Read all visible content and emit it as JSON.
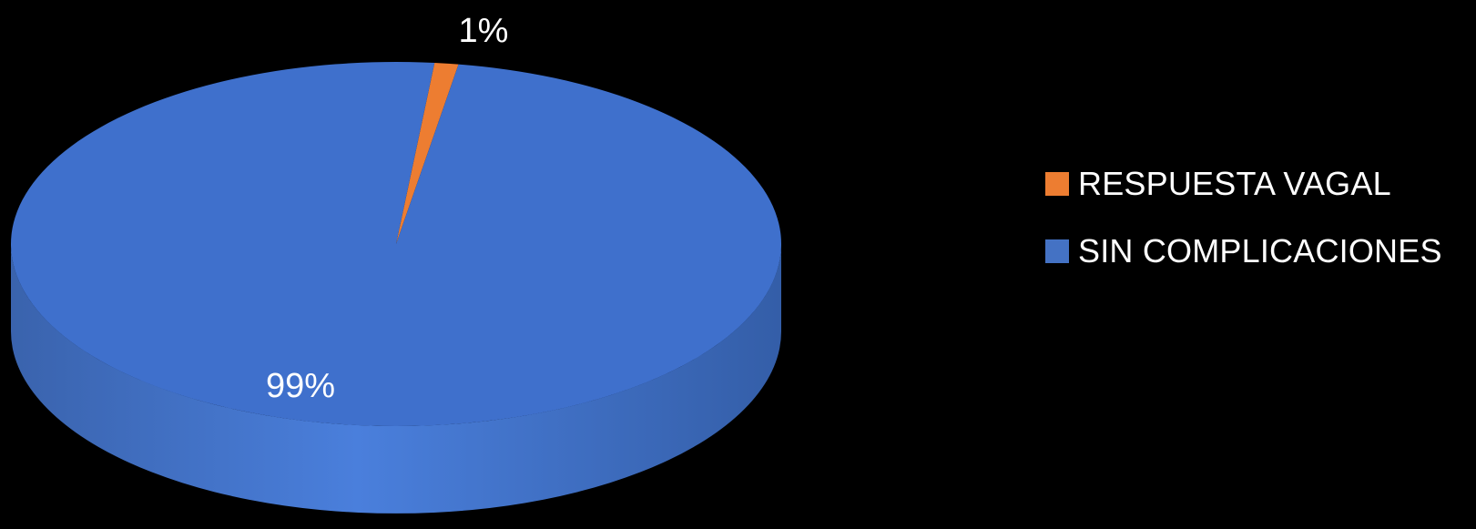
{
  "chart_data": {
    "type": "pie",
    "style": "3d",
    "background": "#000000",
    "legend_position": "right",
    "slices": [
      {
        "name": "RESPUESTA VAGAL",
        "value": 1,
        "label": "1%",
        "color": "#ED7D31"
      },
      {
        "name": "SIN COMPLICACIONES",
        "value": 99,
        "label": "99%",
        "color": "#4472C4"
      }
    ]
  },
  "legend": {
    "items": [
      {
        "label": "RESPUESTA VAGAL",
        "color": "#ED7D31"
      },
      {
        "label": "SIN COMPLICACIONES",
        "color": "#4472C4"
      }
    ]
  }
}
